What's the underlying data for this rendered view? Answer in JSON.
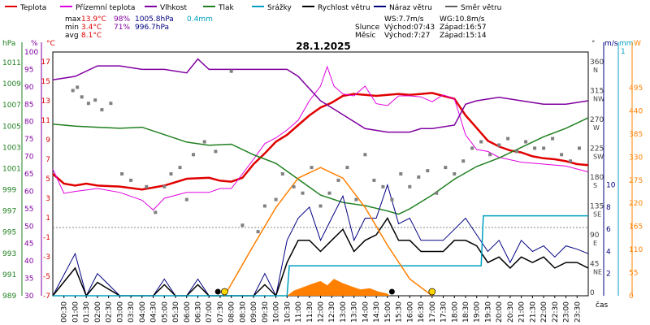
{
  "chart_data": {
    "type": "line",
    "title": "28.1.2025",
    "x_unit": "čas",
    "x_range": [
      "00:00",
      "24:00"
    ],
    "x_ticks": [
      "00:30",
      "01:00",
      "01:30",
      "02:00",
      "02:30",
      "03:00",
      "03:30",
      "04:00",
      "04:30",
      "05:00",
      "05:30",
      "06:00",
      "06:30",
      "07:00",
      "07:30",
      "08:00",
      "08:30",
      "09:00",
      "09:30",
      "10:00",
      "10:30",
      "11:00",
      "11:30",
      "12:00",
      "12:30",
      "13:00",
      "13:30",
      "14:00",
      "14:30",
      "15:00",
      "15:30",
      "16:00",
      "16:30",
      "17:00",
      "17:30",
      "18:00",
      "18:30",
      "19:00",
      "19:30",
      "20:00",
      "20:30",
      "21:00",
      "21:30",
      "22:00",
      "22:30",
      "23:00",
      "23:30"
    ],
    "legend": [
      {
        "label": "Teplota",
        "color": "#e00000"
      },
      {
        "label": "Přízemní teplota",
        "color": "#e000e0"
      },
      {
        "label": "Vlhkost",
        "color": "#8000a0"
      },
      {
        "label": "Tlak",
        "color": "#208020"
      },
      {
        "label": "Srážky",
        "color": "#00a0c0"
      },
      {
        "label": "Rychlost větru",
        "color": "#000000"
      },
      {
        "label": "Náraz větru",
        "color": "#000080"
      },
      {
        "label": "Směr větru",
        "color": "#606060"
      }
    ],
    "stats": {
      "max": {
        "label": "max",
        "temp": "13.9°C",
        "hum": "98%",
        "press": "1005.8hPa",
        "rain": "0.4mm"
      },
      "min": {
        "label": "min",
        "temp": "3.4°C",
        "hum": "71%",
        "press": "996.7hPa"
      },
      "avg": {
        "label": "avg",
        "temp": "8.1°C"
      },
      "wind": {
        "ws": "WS:7.7m/s",
        "wg": "WG:10.8m/s"
      },
      "sun": {
        "label": "Slunce",
        "rise": "Východ:07:43",
        "set": "Západ:16:57"
      },
      "moon": {
        "label": "Měsíc",
        "rise": "Východ:7:27",
        "set": "Západ:15:14"
      }
    },
    "axes": {
      "hpa": {
        "title": "hPa",
        "ticks": [
          "1011",
          "1009",
          "1007",
          "1005",
          "1003",
          "1001",
          "999",
          "997",
          "995",
          "993",
          "991",
          "989"
        ],
        "ylim": [
          989,
          1012
        ]
      },
      "percent": {
        "title": "%",
        "ticks": [
          "100",
          "95",
          "90",
          "85",
          "80",
          "75",
          "70",
          "65",
          "60",
          "55",
          "50",
          "45",
          "40",
          "35",
          "30"
        ],
        "ylim": [
          30,
          100
        ]
      },
      "celsius": {
        "title": "°C",
        "ticks": [
          "17",
          "15",
          "13",
          "11",
          "9",
          "7",
          "5",
          "3",
          "1",
          "-1",
          "-3",
          "-5",
          "-7"
        ],
        "ylim": [
          -7,
          18
        ]
      },
      "direction": {
        "title": "°",
        "ticks": [
          "360",
          "315",
          "270",
          "225",
          "180",
          "135",
          "90",
          "45",
          "0"
        ],
        "names": [
          "N",
          "NW",
          "W",
          "SW",
          "S",
          "SE",
          "E",
          "NE",
          ""
        ]
      },
      "wind_ms": {
        "title": "m/s",
        "ticks": [
          "10",
          "8",
          "6",
          "4",
          "2"
        ]
      },
      "rain_mm": {
        "title": "mm",
        "top": "1"
      },
      "solar_w": {
        "title": "W",
        "ticks": [
          "495",
          "440",
          "385",
          "330",
          "275",
          "220",
          "165",
          "110",
          "55",
          "0"
        ]
      }
    },
    "series": [
      {
        "name": "Teplota",
        "color": "#e00000",
        "x": [
          0,
          0.5,
          1,
          1.5,
          2,
          3,
          4,
          5,
          6,
          7,
          7.5,
          8,
          8.5,
          9,
          9.5,
          10,
          10.5,
          11,
          11.5,
          12,
          12.5,
          13,
          13.5,
          14,
          14.5,
          15,
          15.5,
          16,
          16.5,
          17,
          17.5,
          18,
          18.5,
          19,
          19.5,
          20,
          20.5,
          21,
          21.5,
          22,
          22.5,
          23,
          23.5,
          24
        ],
        "y": [
          5.5,
          4.5,
          4.3,
          4.5,
          4.3,
          4.2,
          3.9,
          4.3,
          5,
          5.1,
          4.8,
          4.7,
          5.1,
          6.5,
          7.6,
          8.8,
          9.5,
          10.5,
          11.5,
          12.3,
          12.8,
          13.5,
          13.7,
          13.6,
          13.5,
          13.6,
          13.7,
          13.6,
          13.7,
          13.8,
          13.5,
          13.2,
          11.5,
          10.2,
          8.9,
          8.3,
          7.9,
          7.7,
          7.3,
          7.1,
          7.0,
          6.8,
          6.5,
          6.4
        ]
      },
      {
        "name": "Přízemní teplota",
        "color": "#e000e0",
        "x": [
          0,
          0.5,
          1,
          2,
          3,
          4,
          4.5,
          5,
          6,
          7,
          7.5,
          8,
          8.5,
          9,
          9.5,
          10,
          10.5,
          11,
          11.5,
          12,
          12.3,
          12.6,
          13,
          13.5,
          14,
          14.5,
          15,
          15.5,
          16,
          16.5,
          17,
          17.5,
          18,
          18.5,
          19,
          19.5,
          20,
          21,
          22,
          23,
          24
        ],
        "y": [
          6,
          3.5,
          3.7,
          4,
          3.6,
          2.8,
          1.8,
          3,
          3.6,
          3.6,
          4,
          4,
          5.5,
          7,
          8.6,
          9.2,
          10,
          11,
          13,
          14.5,
          16.5,
          14.5,
          13.7,
          13.5,
          14.5,
          12.7,
          12.5,
          13.5,
          13.5,
          13.4,
          12.9,
          13.6,
          13.2,
          9.5,
          8.0,
          7.8,
          7.2,
          6.7,
          6.5,
          6.3,
          5.7
        ]
      },
      {
        "name": "Vlhkost",
        "color": "#8000a0",
        "x": [
          0,
          1,
          2,
          3,
          4,
          5,
          6,
          6.5,
          7,
          8,
          9,
          10,
          10.5,
          11,
          12,
          13,
          14,
          15,
          16,
          16.5,
          17,
          18,
          18.5,
          19,
          20,
          21,
          22,
          23,
          24
        ],
        "y": [
          92,
          93,
          96,
          96,
          95,
          95,
          94,
          98,
          95,
          95,
          95,
          95,
          95,
          93,
          86,
          82,
          78,
          77,
          77,
          78,
          78,
          79,
          85,
          86,
          87,
          86,
          85,
          85,
          86
        ]
      },
      {
        "name": "Tlak",
        "color": "#208020",
        "x": [
          0,
          1,
          2,
          3,
          4,
          5,
          6,
          7,
          8,
          9,
          10,
          11,
          12,
          13,
          14,
          15,
          15.5,
          16,
          17,
          18,
          19,
          20,
          21,
          22,
          23,
          24
        ],
        "y": [
          1005.2,
          1005,
          1004.9,
          1004.8,
          1004.9,
          1004.2,
          1003.5,
          1003.2,
          1003.3,
          1002.3,
          1001.5,
          1000,
          998.5,
          997.8,
          997.5,
          997,
          996.7,
          997.2,
          998.5,
          1000,
          1001.2,
          1002,
          1003,
          1004,
          1004.8,
          1005.8
        ]
      },
      {
        "name": "Náraz větru",
        "color": "#000080",
        "x": [
          0,
          1,
          1.5,
          2,
          3,
          4,
          4.5,
          5,
          5.5,
          6,
          6.5,
          7,
          7.5,
          8,
          8.5,
          9,
          9.5,
          10,
          10.5,
          11,
          11.5,
          12,
          12.5,
          13,
          13.5,
          14,
          14.5,
          15,
          15.5,
          16,
          16.5,
          17,
          17.5,
          18,
          18.5,
          19,
          19.5,
          20,
          20.5,
          21,
          21.5,
          22,
          22.5,
          23,
          23.5,
          24
        ],
        "y": [
          0,
          3.8,
          0,
          2,
          0,
          0,
          0,
          1.5,
          0,
          0,
          1.5,
          0,
          0,
          0,
          0,
          0,
          2,
          0,
          5,
          7,
          8,
          5,
          7,
          9,
          5,
          7,
          7,
          10,
          6.5,
          7,
          5,
          5,
          5,
          6,
          7,
          5.5,
          4,
          5,
          3,
          5,
          4,
          4.5,
          3.5,
          4.5,
          4.2,
          3.8
        ]
      },
      {
        "name": "Rychlost větru",
        "color": "#000000",
        "x": [
          0,
          1,
          1.5,
          2,
          3,
          4,
          4.5,
          5,
          5.5,
          6,
          6.5,
          7,
          7.5,
          8,
          8.5,
          9,
          9.5,
          10,
          10.5,
          11,
          11.5,
          12,
          12.5,
          13,
          13.5,
          14,
          14.5,
          15,
          15.5,
          16,
          16.5,
          17,
          17.5,
          18,
          18.5,
          19,
          19.5,
          20,
          20.5,
          21,
          21.5,
          22,
          22.5,
          23,
          23.5,
          24
        ],
        "y": [
          0,
          2.5,
          0,
          1.2,
          0,
          0,
          0,
          1,
          0,
          0,
          1,
          0,
          0,
          0,
          0,
          0,
          1,
          0,
          3,
          5,
          5,
          4,
          5,
          6,
          4,
          5,
          5.5,
          7,
          5,
          5,
          4,
          4,
          4,
          5,
          5,
          4.5,
          3,
          3.5,
          2.5,
          3.5,
          3,
          3.5,
          2.5,
          3,
          3,
          2.5
        ]
      },
      {
        "name": "Srážky",
        "color": "#00a0c0",
        "x": [
          0,
          10.5,
          10.6,
          19.2,
          19.3,
          24
        ],
        "y": [
          0,
          0,
          0.15,
          0.15,
          0.4,
          0.4
        ]
      },
      {
        "name": "Sluneční záření",
        "color": "#ff8000",
        "x": [
          7.7,
          9,
          10,
          11,
          12,
          13,
          14,
          15,
          16,
          17
        ],
        "y": [
          0,
          120,
          210,
          280,
          305,
          280,
          210,
          120,
          40,
          0
        ]
      }
    ],
    "wind_direction_points": [
      [
        0.9,
        320
      ],
      [
        1.1,
        325
      ],
      [
        1.3,
        310
      ],
      [
        1.6,
        300
      ],
      [
        1.9,
        305
      ],
      [
        2.2,
        290
      ],
      [
        2.6,
        300
      ],
      [
        3.1,
        190
      ],
      [
        3.5,
        180
      ],
      [
        4.2,
        170
      ],
      [
        4.6,
        130
      ],
      [
        5.0,
        170
      ],
      [
        5.3,
        190
      ],
      [
        5.7,
        200
      ],
      [
        6.0,
        150
      ],
      [
        6.3,
        220
      ],
      [
        6.8,
        240
      ],
      [
        7.3,
        225
      ],
      [
        8.0,
        350
      ],
      [
        8.5,
        110
      ],
      [
        9.2,
        100
      ],
      [
        9.5,
        140
      ],
      [
        10.0,
        150
      ],
      [
        10.3,
        190
      ],
      [
        10.8,
        170
      ],
      [
        11.2,
        160
      ],
      [
        11.6,
        200
      ],
      [
        12.0,
        140
      ],
      [
        12.4,
        160
      ],
      [
        12.8,
        180
      ],
      [
        13.2,
        200
      ],
      [
        13.6,
        150
      ],
      [
        14.0,
        220
      ],
      [
        14.4,
        180
      ],
      [
        14.8,
        170
      ],
      [
        15.2,
        150
      ],
      [
        15.6,
        190
      ],
      [
        16.0,
        170
      ],
      [
        16.4,
        185
      ],
      [
        16.8,
        195
      ],
      [
        17.2,
        160
      ],
      [
        17.6,
        200
      ],
      [
        18.0,
        190
      ],
      [
        18.4,
        210
      ],
      [
        18.8,
        230
      ],
      [
        19.2,
        240
      ],
      [
        19.6,
        220
      ],
      [
        20.0,
        235
      ],
      [
        20.4,
        245
      ],
      [
        20.8,
        225
      ],
      [
        21.2,
        240
      ],
      [
        21.6,
        230
      ],
      [
        22.0,
        230
      ],
      [
        22.4,
        245
      ],
      [
        22.8,
        220
      ],
      [
        23.2,
        210
      ],
      [
        23.6,
        230
      ]
    ]
  }
}
